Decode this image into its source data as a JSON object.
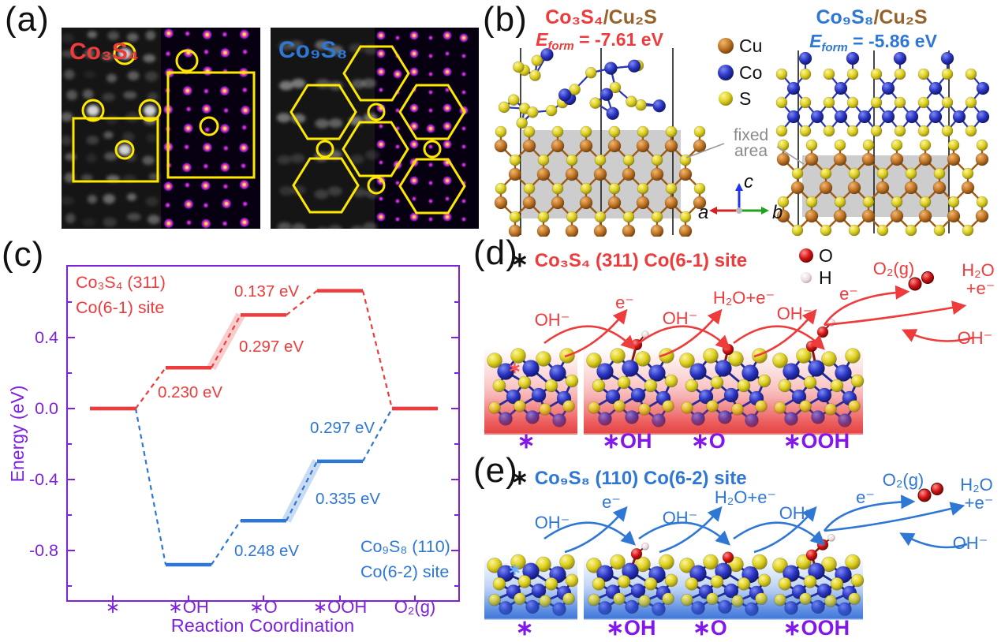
{
  "figure": {
    "panel_labels": {
      "a": "(a)",
      "b": "(b)",
      "c": "(c)",
      "d": "(d)",
      "e": "(e)"
    }
  },
  "panels": {
    "a": {
      "left_title": "Co₃S₄",
      "right_title": "Co₉S₈",
      "left_title_color": "#ee3b3c",
      "right_title_color": "#2e77d4",
      "annotation_color": "#ffe800"
    },
    "b": {
      "left": {
        "formula": "Co₃S₄",
        "substrate": "/Cu₂S",
        "eform_symbol": "E",
        "eform_sub": "form",
        "eform_rest": " = -7.61 eV",
        "accent": "#ee3b3c"
      },
      "right": {
        "formula": "Co₉S₈",
        "substrate": "/Cu₂S",
        "eform_symbol": "E",
        "eform_sub": "form",
        "eform_rest": " = -5.86 eV",
        "accent": "#2e77d4"
      },
      "substrate_color": "#96622a",
      "legend": [
        {
          "element": "Cu",
          "color": "#b06820"
        },
        {
          "element": "Co",
          "color": "#2a2fb4"
        },
        {
          "element": "S",
          "color": "#ddd020"
        }
      ],
      "fixed_area_line1": "fixed",
      "fixed_area_line2": "area",
      "axis_a": "a",
      "axis_b": "b",
      "axis_c": "c"
    },
    "d": {
      "star": "∗",
      "title": "Co₃S₄ (311) Co(6-1) site",
      "accent": "#ee3b3c",
      "legend": [
        {
          "element": "O",
          "color": "#cc1515"
        },
        {
          "element": "H",
          "color": "#e2cbcb"
        }
      ],
      "labels": {
        "oh1": "OH⁻",
        "e1": "e⁻",
        "oh2": "OH⁻",
        "h2oe": "H₂O+e⁻",
        "oh3": "OH⁻",
        "e2": "e⁻",
        "o2": "O₂(g)",
        "h2o": "H₂O",
        "pe": "+e⁻",
        "oh4": "OH⁻"
      },
      "species": [
        "∗",
        "∗OH",
        "∗O",
        "∗OOH"
      ]
    },
    "e": {
      "star": "∗",
      "title": "Co₉S₈ (110) Co(6-2) site",
      "accent": "#2e77d4",
      "labels": {
        "oh1": "OH⁻",
        "e1": "e⁻",
        "oh2": "OH⁻",
        "h2oe": "H₂O+e⁻",
        "oh3": "OH⁻",
        "e2": "e⁻",
        "o2": "O₂(g)",
        "h2o": "H₂O",
        "pe": "+e⁻",
        "oh4": "OH⁻"
      },
      "species": [
        "∗",
        "∗OH",
        "∗O",
        "∗OOH"
      ]
    }
  },
  "chart_data": {
    "type": "line",
    "subtype": "reaction-energy-step-diagram",
    "xlabel": "Reaction Coordination",
    "ylabel": "Energy (eV)",
    "x_ticks": [
      "∗",
      "∗OH",
      "∗O",
      "∗OOH",
      "O₂(g)"
    ],
    "y_tick_labels": [
      "0.4",
      "0.0",
      "-0.4",
      "-0.8"
    ],
    "y_tick_values": [
      0.4,
      0.0,
      -0.4,
      -0.8
    ],
    "ylim": [
      -1.08,
      0.8
    ],
    "minor_tick_step": 0.2,
    "axis_color": "#7e22dd",
    "grid": false,
    "series": [
      {
        "name_lines": [
          "Co₉S₈ (110)",
          "Co(6-2) site"
        ],
        "color": "#2e77d4",
        "levels": [
          0.0,
          -0.88,
          -0.632,
          -0.297,
          0.0
        ],
        "step_labels": [
          {
            "between": "∗OH→∗O",
            "text": "0.248 eV"
          },
          {
            "between": "∗O→∗OOH",
            "text": "0.335 eV"
          },
          {
            "between": "∗OOH→O₂(g)",
            "text": "0.297 eV"
          }
        ],
        "highlight_step": 2
      },
      {
        "name_lines": [
          "Co₃S₄ (311)",
          "Co(6-1) site"
        ],
        "color": "#ee3b3c",
        "levels": [
          0.0,
          0.23,
          0.527,
          0.664,
          0.0
        ],
        "step_labels": [
          {
            "between": "∗→∗OH",
            "text": "0.230 eV"
          },
          {
            "between": "∗OH→∗O",
            "text": "0.297 eV"
          },
          {
            "between": "∗O→∗OOH",
            "text": "0.137 eV"
          }
        ],
        "highlight_step": 1
      }
    ]
  }
}
